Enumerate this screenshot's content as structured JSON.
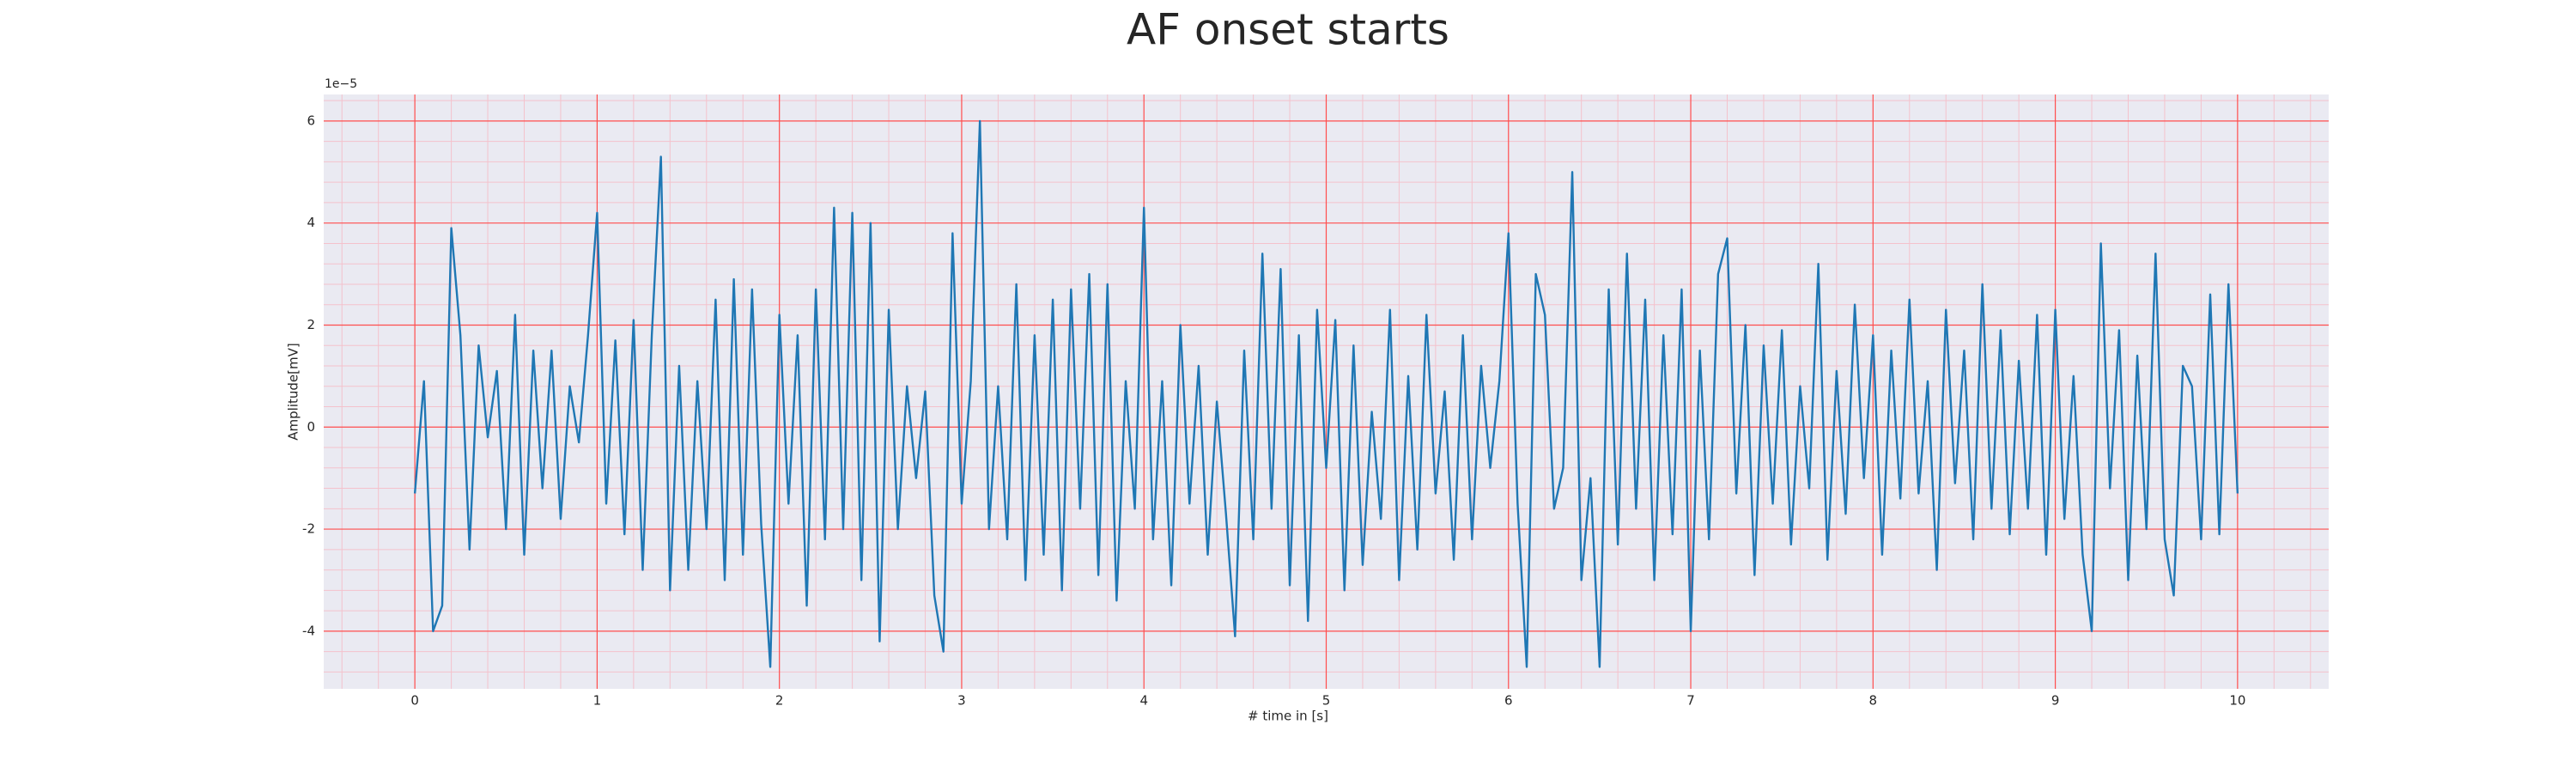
{
  "chart_data": {
    "type": "line",
    "title": "AF onset starts",
    "xlabel": "# time in [s]",
    "ylabel": "Amplitude[mV]",
    "y_offset_label": "1e−5",
    "color": "#1f77b4",
    "grid": true,
    "minor_grid": true,
    "background": "#eaeaf2",
    "grid_color": "#ff4d4d",
    "minor_grid_color": "#f4c2cc",
    "xlim": [
      -0.5,
      10.5
    ],
    "xticks": [
      0,
      1,
      2,
      3,
      4,
      5,
      6,
      7,
      8,
      9,
      10
    ],
    "ylim": [
      -5.13,
      6.52
    ],
    "yticks": [
      -4,
      -2,
      0,
      2,
      4,
      6
    ],
    "x": [
      0,
      0.05,
      0.1,
      0.15,
      0.2,
      0.25,
      0.3,
      0.35,
      0.4,
      0.45,
      0.5,
      0.55,
      0.6,
      0.65,
      0.7,
      0.75,
      0.8,
      0.85,
      0.9,
      0.95,
      1,
      1.05,
      1.1,
      1.15,
      1.2,
      1.25,
      1.3,
      1.35,
      1.4,
      1.45,
      1.5,
      1.55,
      1.6,
      1.65,
      1.7,
      1.75,
      1.8,
      1.85,
      1.9,
      1.95,
      2,
      2.05,
      2.1,
      2.15,
      2.2,
      2.25,
      2.3,
      2.35,
      2.4,
      2.45,
      2.5,
      2.55,
      2.6,
      2.65,
      2.7,
      2.75,
      2.8,
      2.85,
      2.9,
      2.95,
      3,
      3.05,
      3.1,
      3.15,
      3.2,
      3.25,
      3.3,
      3.35,
      3.4,
      3.45,
      3.5,
      3.55,
      3.6,
      3.65,
      3.7,
      3.75,
      3.8,
      3.85,
      3.9,
      3.95,
      4,
      4.05,
      4.1,
      4.15,
      4.2,
      4.25,
      4.3,
      4.35,
      4.4,
      4.45,
      4.5,
      4.55,
      4.6,
      4.65,
      4.7,
      4.75,
      4.8,
      4.85,
      4.9,
      4.95,
      5,
      5.05,
      5.1,
      5.15,
      5.2,
      5.25,
      5.3,
      5.35,
      5.4,
      5.45,
      5.5,
      5.55,
      5.6,
      5.65,
      5.7,
      5.75,
      5.8,
      5.85,
      5.9,
      5.95,
      6,
      6.05,
      6.1,
      6.15,
      6.2,
      6.25,
      6.3,
      6.35,
      6.4,
      6.45,
      6.5,
      6.55,
      6.6,
      6.65,
      6.7,
      6.75,
      6.8,
      6.85,
      6.9,
      6.95,
      7,
      7.05,
      7.1,
      7.15,
      7.2,
      7.25,
      7.3,
      7.35,
      7.4,
      7.45,
      7.5,
      7.55,
      7.6,
      7.65,
      7.7,
      7.75,
      7.8,
      7.85,
      7.9,
      7.95,
      8,
      8.05,
      8.1,
      8.15,
      8.2,
      8.25,
      8.3,
      8.35,
      8.4,
      8.45,
      8.5,
      8.55,
      8.6,
      8.65,
      8.7,
      8.75,
      8.8,
      8.85,
      8.9,
      8.95,
      9,
      9.05,
      9.1,
      9.15,
      9.2,
      9.25,
      9.3,
      9.35,
      9.4,
      9.45,
      9.5,
      9.55,
      9.6,
      9.65,
      9.7,
      9.75,
      9.8,
      9.85,
      9.9,
      9.95,
      10
    ],
    "values": [
      -1.3,
      0.9,
      -4.0,
      -3.5,
      3.9,
      1.8,
      -2.4,
      1.6,
      -0.2,
      1.1,
      -2.0,
      2.2,
      -2.5,
      1.5,
      -1.2,
      1.5,
      -1.8,
      0.8,
      -0.3,
      1.8,
      4.2,
      -1.5,
      1.7,
      -2.1,
      2.1,
      -2.8,
      1.8,
      5.3,
      -3.2,
      1.2,
      -2.8,
      0.9,
      -2.0,
      2.5,
      -3.0,
      2.9,
      -2.5,
      2.7,
      -1.9,
      -4.7,
      2.2,
      -1.5,
      1.8,
      -3.5,
      2.7,
      -2.2,
      4.3,
      -2.0,
      4.2,
      -3.0,
      4.0,
      -4.2,
      2.3,
      -2.0,
      0.8,
      -1.0,
      0.7,
      -3.3,
      -4.4,
      3.8,
      -1.5,
      0.9,
      6.0,
      -2.0,
      0.8,
      -2.2,
      2.8,
      -3.0,
      1.8,
      -2.5,
      2.5,
      -3.2,
      2.7,
      -1.6,
      3.0,
      -2.9,
      2.8,
      -3.4,
      0.9,
      -1.6,
      4.3,
      -2.2,
      0.9,
      -3.1,
      2.0,
      -1.5,
      1.2,
      -2.5,
      0.5,
      -1.7,
      -4.1,
      1.5,
      -2.2,
      3.4,
      -1.6,
      3.1,
      -3.1,
      1.8,
      -3.8,
      2.3,
      -0.8,
      2.1,
      -3.2,
      1.6,
      -2.7,
      0.3,
      -1.8,
      2.3,
      -3.0,
      1.0,
      -2.4,
      2.2,
      -1.3,
      0.7,
      -2.6,
      1.8,
      -2.2,
      1.2,
      -0.8,
      0.9,
      3.8,
      -1.5,
      -4.7,
      3.0,
      2.2,
      -1.6,
      -0.8,
      5.0,
      -3.0,
      -1.0,
      -4.7,
      2.7,
      -2.3,
      3.4,
      -1.6,
      2.5,
      -3.0,
      1.8,
      -2.1,
      2.7,
      -4.0,
      1.5,
      -2.2,
      3.0,
      3.7,
      -1.3,
      2.0,
      -2.9,
      1.6,
      -1.5,
      1.9,
      -2.3,
      0.8,
      -1.2,
      3.2,
      -2.6,
      1.1,
      -1.7,
      2.4,
      -1.0,
      1.8,
      -2.5,
      1.5,
      -1.4,
      2.5,
      -1.3,
      0.9,
      -2.8,
      2.3,
      -1.1,
      1.5,
      -2.2,
      2.8,
      -1.6,
      1.9,
      -2.1,
      1.3,
      -1.6,
      2.2,
      -2.5,
      2.3,
      -1.8,
      1.0,
      -2.5,
      -4.0,
      3.6,
      -1.2,
      1.9,
      -3.0,
      1.4,
      -2.0,
      3.4,
      -2.2,
      -3.3,
      1.2,
      0.8,
      -2.2,
      2.6,
      -2.1,
      2.8,
      -1.3
    ]
  }
}
